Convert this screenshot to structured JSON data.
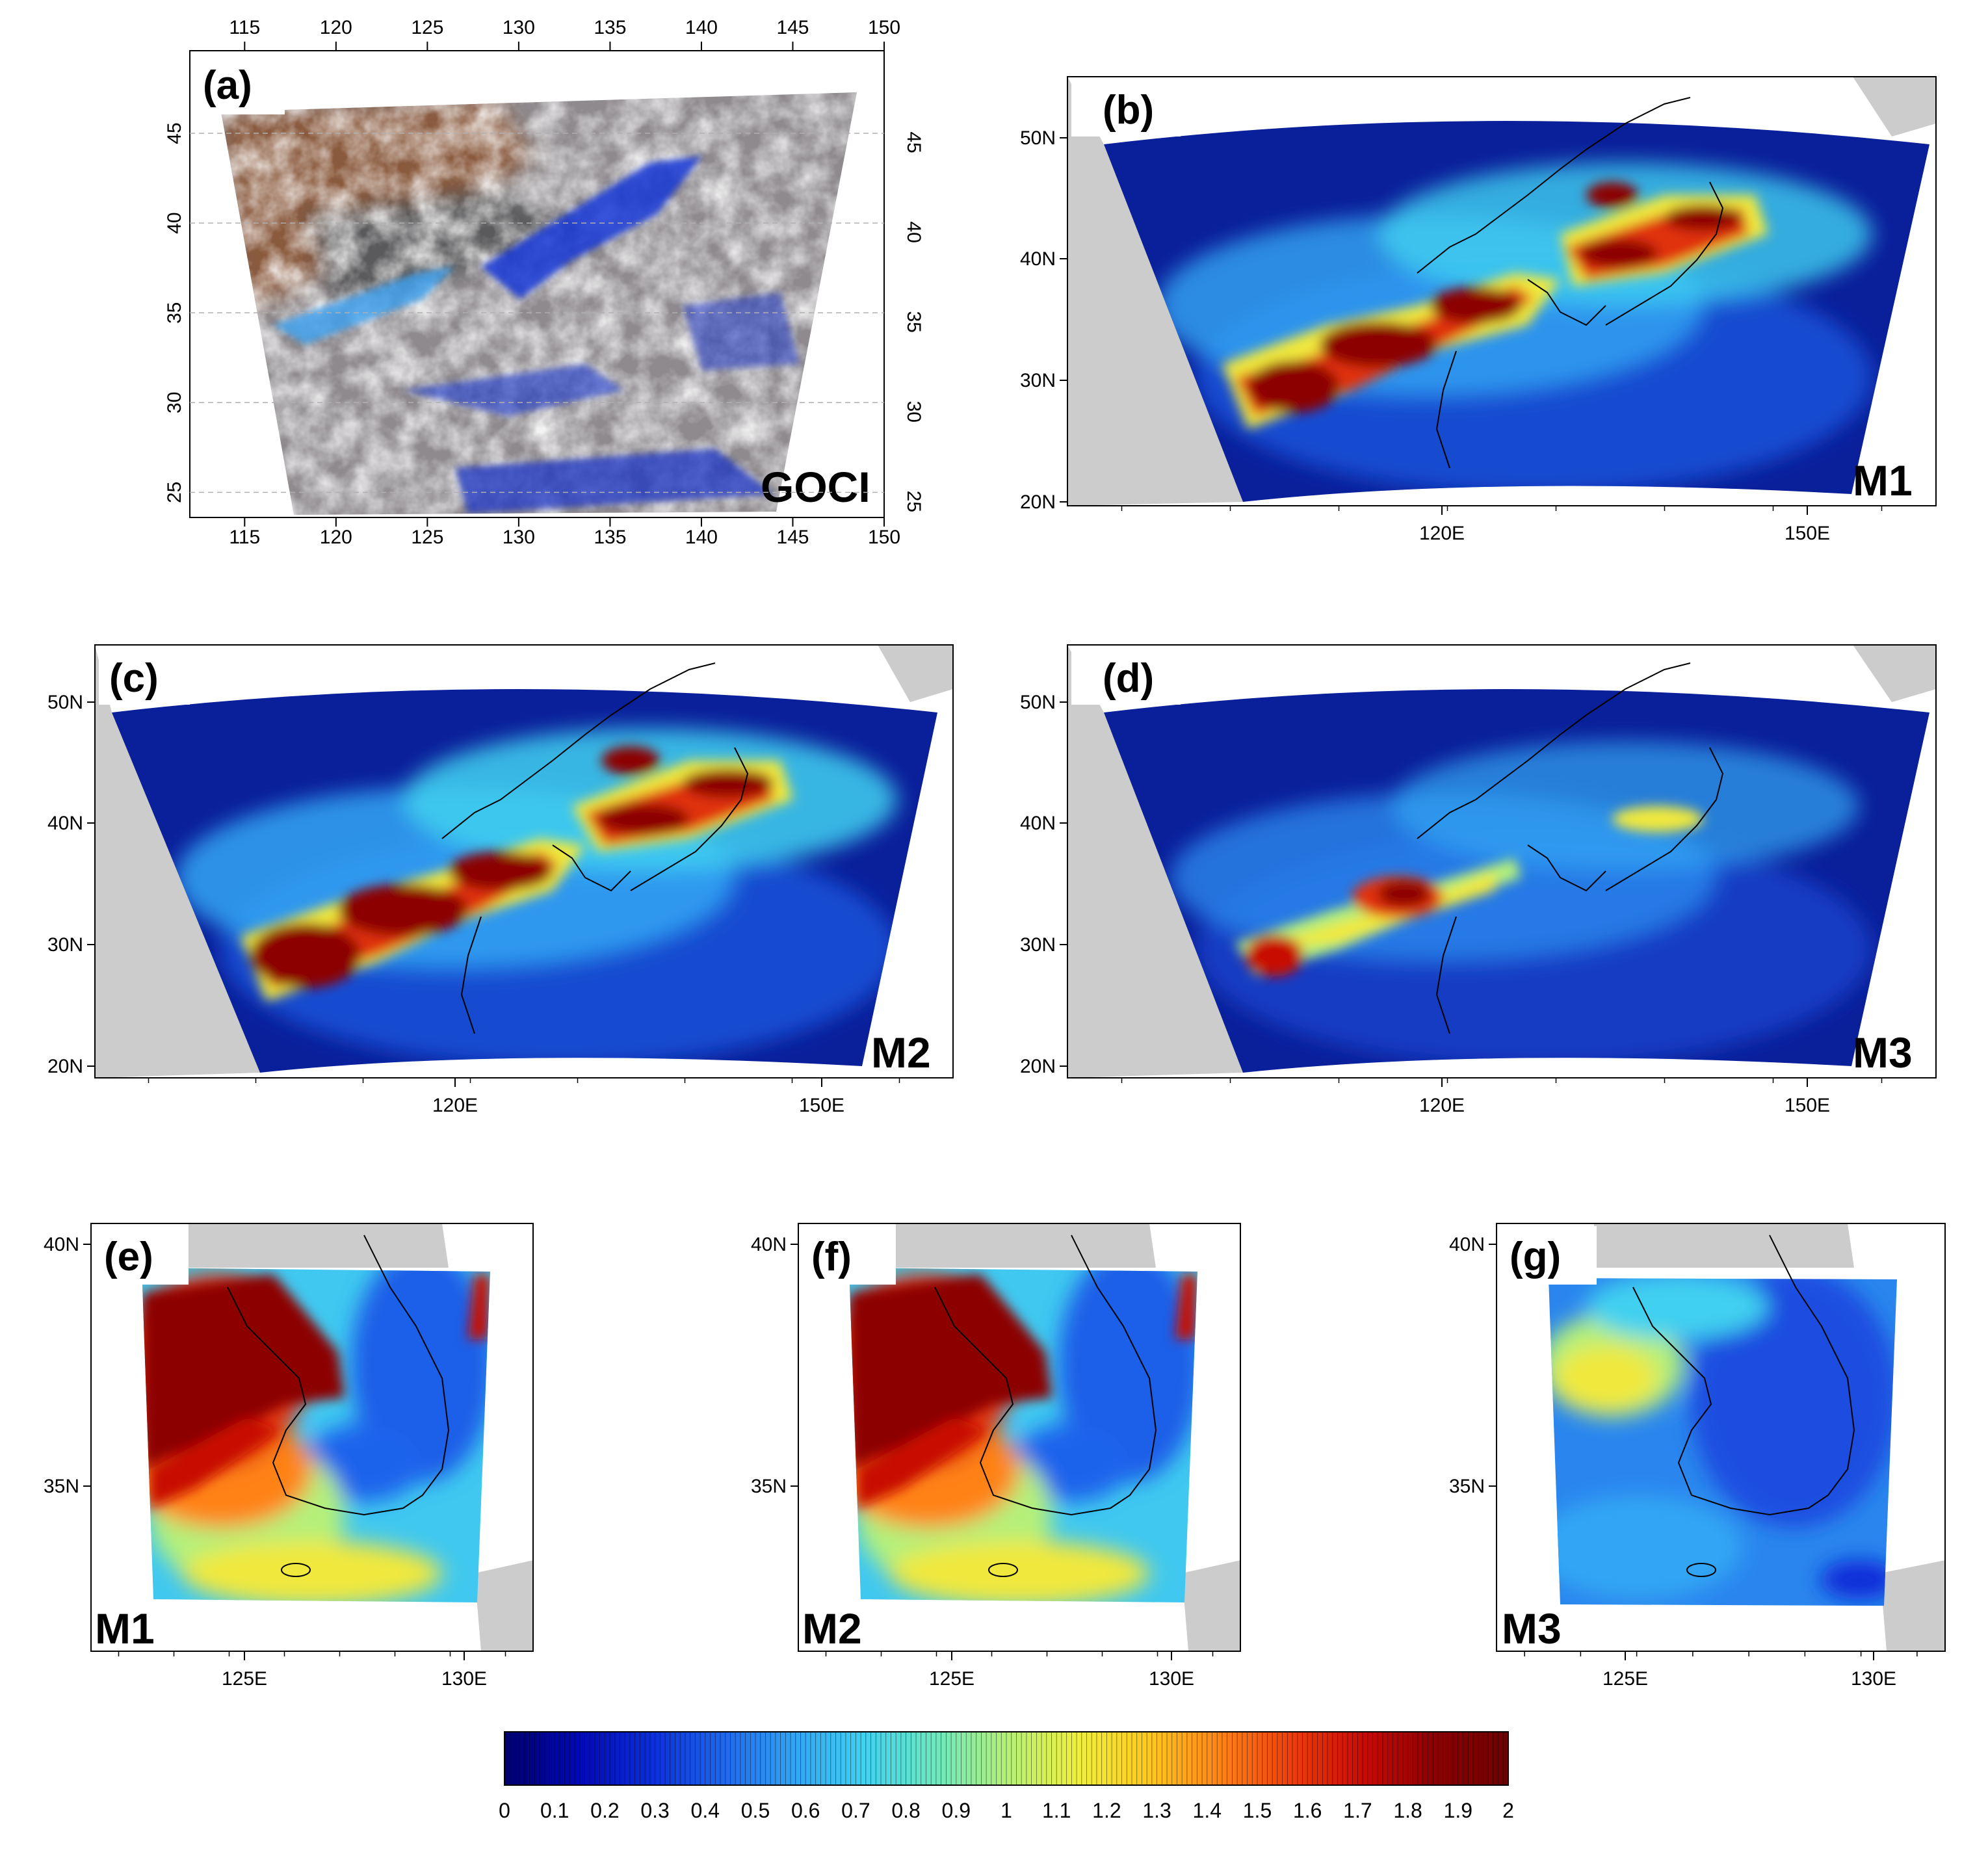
{
  "colors": {
    "ocean_bg": "#0a1f9a",
    "land_grey": "#cccccc",
    "frame": "#000000",
    "scale": [
      "#00006e",
      "#0008b4",
      "#0a2cd8",
      "#1e64ec",
      "#32a2f4",
      "#40d0f0",
      "#6ce8c0",
      "#b4f07a",
      "#f0f03c",
      "#ffc81e",
      "#ff8214",
      "#ee3c0a",
      "#c80a06",
      "#8c0000",
      "#6e0000"
    ]
  },
  "panels": [
    {
      "id": "a",
      "label": "(a)",
      "model": "GOCI",
      "x_ticks_top": [
        "115",
        "120",
        "125",
        "130",
        "135",
        "140",
        "145",
        "150"
      ],
      "x_ticks_bottom": [
        "115",
        "120",
        "125",
        "130",
        "135",
        "140",
        "145",
        "150"
      ],
      "y_ticks_left": [
        "45",
        "40",
        "35",
        "30",
        "25"
      ],
      "y_ticks_right": [
        "45",
        "40",
        "35",
        "30",
        "25"
      ]
    },
    {
      "id": "b",
      "label": "(b)",
      "model": "M1",
      "x_ticks": [
        "120E",
        "150E"
      ],
      "y_ticks": [
        "50N",
        "40N",
        "30N",
        "20N"
      ]
    },
    {
      "id": "c",
      "label": "(c)",
      "model": "M2",
      "x_ticks": [
        "120E",
        "150E"
      ],
      "y_ticks": [
        "50N",
        "40N",
        "30N",
        "20N"
      ]
    },
    {
      "id": "d",
      "label": "(d)",
      "model": "M3",
      "x_ticks": [
        "120E",
        "150E"
      ],
      "y_ticks": [
        "50N",
        "40N",
        "30N",
        "20N"
      ]
    },
    {
      "id": "e",
      "label": "(e)",
      "model": "M1",
      "x_ticks": [
        "125E",
        "130E"
      ],
      "y_ticks": [
        "40N",
        "35N"
      ]
    },
    {
      "id": "f",
      "label": "(f)",
      "model": "M2",
      "x_ticks": [
        "125E",
        "130E"
      ],
      "y_ticks": [
        "40N",
        "35N"
      ]
    },
    {
      "id": "g",
      "label": "(g)",
      "model": "M3",
      "x_ticks": [
        "125E",
        "130E"
      ],
      "y_ticks": [
        "40N",
        "35N"
      ]
    }
  ],
  "colorbar": {
    "min": 0,
    "max": 2,
    "tick_labels": [
      "0",
      "0.1",
      "0.2",
      "0.3",
      "0.4",
      "0.5",
      "0.6",
      "0.7",
      "0.8",
      "0.9",
      "1",
      "1.1",
      "1.2",
      "1.3",
      "1.4",
      "1.5",
      "1.6",
      "1.7",
      "1.8",
      "1.9",
      "2"
    ]
  }
}
